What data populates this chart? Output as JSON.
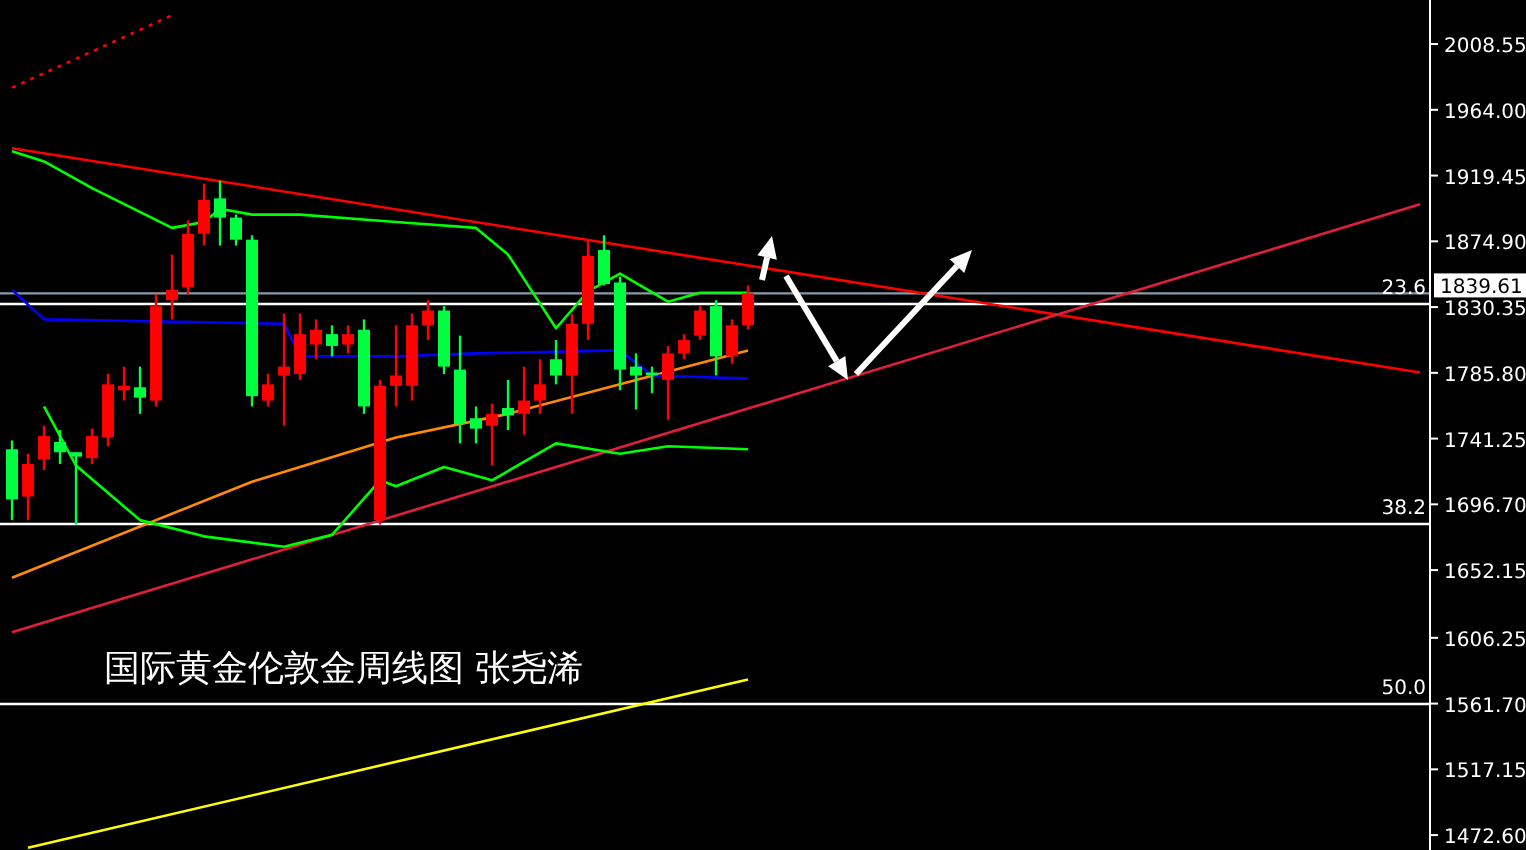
{
  "chart_data": {
    "type": "candlestick",
    "title": "国际黄金伦敦金周线图 张尧浠",
    "categories": [
      null,
      null,
      null,
      null,
      null,
      null,
      null,
      null,
      null,
      null,
      null,
      null,
      null,
      null,
      null,
      null,
      null,
      null,
      null,
      null,
      null,
      null,
      null,
      null,
      null,
      null,
      null,
      null,
      null,
      null,
      null,
      null,
      null,
      null,
      null,
      null,
      null,
      null,
      null,
      null,
      null,
      null,
      null,
      null,
      null,
      null,
      null,
      null,
      null,
      null,
      null,
      null,
      null,
      null,
      null,
      null,
      null,
      null,
      null,
      null,
      null,
      null,
      null,
      null,
      null,
      null,
      null,
      null,
      null,
      null,
      null,
      null,
      null,
      null,
      null,
      null,
      null,
      null,
      null,
      null,
      null,
      null,
      null,
      null,
      null,
      null,
      null,
      null,
      null
    ],
    "ohlc": [
      [
        1734,
        1740,
        1686,
        1700
      ],
      [
        1702,
        1731,
        1686,
        1724
      ],
      [
        1727,
        1750,
        1720,
        1743
      ],
      [
        1739,
        1747,
        1724,
        1732
      ],
      [
        1732,
        1732,
        1683,
        1729
      ],
      [
        1728,
        1748,
        1724,
        1743
      ],
      [
        1742,
        1785,
        1736,
        1778
      ],
      [
        1774,
        1790,
        1767,
        1777
      ],
      [
        1776,
        1790,
        1758,
        1769
      ],
      [
        1767,
        1839,
        1763,
        1831
      ],
      [
        1835,
        1866,
        1822,
        1842
      ],
      [
        1844,
        1889,
        1839,
        1880
      ],
      [
        1880,
        1914,
        1872,
        1903
      ],
      [
        1904,
        1916,
        1872,
        1891
      ],
      [
        1891,
        1893,
        1872,
        1876
      ],
      [
        1876,
        1879,
        1763,
        1770
      ],
      [
        1767,
        1785,
        1763,
        1778
      ],
      [
        1784,
        1826,
        1750,
        1790
      ],
      [
        1785,
        1826,
        1781,
        1812
      ],
      [
        1805,
        1822,
        1795,
        1815
      ],
      [
        1812,
        1818,
        1797,
        1804
      ],
      [
        1805,
        1818,
        1799,
        1812
      ],
      [
        1815,
        1822,
        1758,
        1763
      ],
      [
        1686,
        1781,
        1683,
        1777
      ],
      [
        1777,
        1818,
        1763,
        1784
      ],
      [
        1777,
        1826,
        1767,
        1818
      ],
      [
        1818,
        1835,
        1808,
        1828
      ],
      [
        1828,
        1831,
        1785,
        1790
      ],
      [
        1788,
        1811,
        1738,
        1751
      ],
      [
        1755,
        1763,
        1738,
        1748
      ],
      [
        1750,
        1765,
        1723,
        1758
      ],
      [
        1762,
        1781,
        1747,
        1757
      ],
      [
        1758,
        1790,
        1744,
        1767
      ],
      [
        1767,
        1795,
        1758,
        1778
      ],
      [
        1795,
        1808,
        1778,
        1784
      ],
      [
        1784,
        1826,
        1758,
        1819
      ],
      [
        1819,
        1876,
        1808,
        1865
      ],
      [
        1869,
        1879,
        1845,
        1846
      ],
      [
        1847,
        1851,
        1774,
        1788
      ],
      [
        1790,
        1799,
        1761,
        1784
      ],
      [
        1786,
        1790,
        1772,
        1784
      ],
      [
        1781,
        1804,
        1754,
        1799
      ],
      [
        1799,
        1812,
        1795,
        1808
      ],
      [
        1811,
        1831,
        1808,
        1828
      ],
      [
        1831,
        1835,
        1784,
        1797
      ],
      [
        1797,
        1822,
        1792,
        1818
      ],
      [
        1818,
        1845,
        1815,
        1839.61
      ],
      null,
      null,
      null,
      null,
      null,
      null,
      null,
      null,
      null,
      null,
      null,
      null,
      null,
      null,
      null,
      null,
      null,
      null,
      null,
      null,
      null,
      null,
      null,
      null,
      null,
      null,
      null,
      null,
      null,
      null,
      null,
      null,
      null,
      null,
      null,
      null,
      null,
      null,
      null,
      null,
      null,
      null
    ],
    "series": [
      {
        "type": "line",
        "color": "#ff0000",
        "values": [
          1938,
          null,
          null,
          null,
          null,
          null,
          null,
          null,
          null,
          null,
          null,
          null,
          null,
          null,
          null,
          null,
          null,
          null,
          null,
          null,
          null,
          null,
          null,
          null,
          null,
          null,
          null,
          null,
          null,
          null,
          null,
          null,
          null,
          null,
          null,
          null,
          null,
          null,
          null,
          null,
          null,
          null,
          null,
          null,
          null,
          null,
          null,
          null,
          null,
          null,
          null,
          null,
          null,
          null,
          null,
          null,
          null,
          null,
          null,
          null,
          null,
          null,
          null,
          null,
          null,
          null,
          null,
          null,
          null,
          null,
          null,
          null,
          null,
          null,
          null,
          null,
          null,
          null,
          null,
          null,
          null,
          null,
          null,
          null,
          null,
          null,
          null,
          null,
          1786
        ]
      },
      {
        "type": "line",
        "color": "#e0203a",
        "values": [
          1610,
          null,
          null,
          null,
          null,
          null,
          null,
          null,
          null,
          null,
          null,
          null,
          null,
          null,
          null,
          null,
          null,
          null,
          null,
          null,
          null,
          null,
          null,
          null,
          null,
          null,
          null,
          null,
          null,
          null,
          null,
          null,
          null,
          null,
          null,
          null,
          null,
          null,
          null,
          null,
          null,
          null,
          null,
          null,
          null,
          null,
          null,
          null,
          null,
          null,
          null,
          null,
          null,
          null,
          null,
          null,
          null,
          null,
          null,
          null,
          null,
          null,
          null,
          null,
          null,
          null,
          null,
          null,
          null,
          null,
          null,
          null,
          null,
          null,
          null,
          null,
          null,
          null,
          null,
          null,
          null,
          null,
          null,
          null,
          null,
          null,
          null,
          null,
          1900
        ]
      },
      {
        "type": "line",
        "color": "#ff0000",
        "line_style": "dotted",
        "values": [
          1979,
          null,
          null,
          null,
          null,
          null,
          null,
          null,
          null,
          null,
          2028,
          null,
          null,
          null,
          null,
          null,
          null,
          null,
          null,
          null,
          null,
          null,
          null,
          null,
          null,
          null,
          null,
          null,
          null,
          null,
          null,
          null,
          null,
          null,
          null,
          null,
          null,
          null,
          null,
          null,
          null,
          null,
          null,
          null,
          null,
          null,
          null,
          null,
          null,
          null,
          null,
          null,
          null,
          null,
          null,
          null,
          null,
          null,
          null,
          null,
          null,
          null,
          null,
          null,
          null,
          null,
          null,
          null,
          null,
          null,
          null,
          null,
          null,
          null,
          null,
          null,
          null,
          null,
          null,
          null,
          null,
          null,
          null,
          null,
          null,
          null,
          null,
          null,
          null
        ]
      },
      {
        "type": "line",
        "color": "#ffff00",
        "values": [
          null,
          1464,
          null,
          null,
          null,
          null,
          null,
          null,
          null,
          null,
          null,
          null,
          null,
          null,
          null,
          null,
          null,
          null,
          null,
          null,
          null,
          null,
          null,
          null,
          null,
          null,
          null,
          null,
          null,
          null,
          null,
          null,
          null,
          null,
          null,
          null,
          null,
          null,
          null,
          null,
          null,
          null,
          null,
          null,
          null,
          null,
          1578,
          null,
          null,
          null,
          null,
          null,
          null,
          null,
          null,
          null,
          null,
          null,
          null,
          null,
          null,
          null,
          null,
          null,
          null,
          null,
          null,
          null,
          null,
          null,
          null,
          null,
          null,
          null,
          null,
          null,
          null,
          null,
          null,
          null,
          null,
          null,
          null,
          null,
          null,
          null,
          null,
          null,
          null
        ]
      },
      {
        "type": "line",
        "color": "#ff8c00",
        "values": [
          1647,
          null,
          null,
          null,
          null,
          null,
          null,
          null,
          null,
          null,
          null,
          null,
          null,
          null,
          null,
          1712,
          null,
          null,
          null,
          null,
          null,
          null,
          null,
          null,
          1742,
          null,
          null,
          null,
          null,
          null,
          null,
          1758,
          null,
          null,
          null,
          null,
          null,
          null,
          1778,
          null,
          null,
          null,
          null,
          null,
          null,
          null,
          1801,
          null,
          null,
          null,
          null,
          null,
          null,
          null,
          null,
          null,
          null,
          null,
          null,
          null,
          null,
          null,
          null,
          null,
          null,
          null,
          null,
          null,
          null,
          null,
          null,
          null,
          null,
          null,
          null,
          null,
          null,
          null,
          null,
          null,
          null,
          null,
          null,
          null,
          null,
          null,
          null,
          null,
          null
        ]
      },
      {
        "type": "line",
        "color": "#0000ff",
        "values": [
          1842,
          null,
          1822,
          null,
          null,
          null,
          null,
          null,
          null,
          null,
          null,
          null,
          null,
          null,
          null,
          null,
          null,
          1819,
          1797,
          null,
          null,
          null,
          null,
          null,
          1797,
          null,
          null,
          null,
          null,
          1799,
          null,
          null,
          null,
          null,
          null,
          null,
          null,
          null,
          1801,
          null,
          1784,
          null,
          null,
          null,
          null,
          null,
          1782,
          null,
          null,
          null,
          null,
          null,
          null,
          null,
          null,
          null,
          null,
          null,
          null,
          null,
          null,
          null,
          null,
          null,
          null,
          null,
          null,
          null,
          null,
          null,
          null,
          null,
          null,
          null,
          null,
          null,
          null,
          null,
          null,
          null,
          null,
          null,
          null,
          null,
          null,
          null,
          null,
          null,
          null
        ]
      },
      {
        "type": "line",
        "color": "#00ff00",
        "values": [
          1936,
          null,
          1929,
          null,
          null,
          1911,
          null,
          null,
          null,
          null,
          1884,
          null,
          1888,
          1897,
          null,
          1893,
          null,
          null,
          1893,
          null,
          null,
          null,
          null,
          null,
          1888,
          null,
          null,
          null,
          null,
          1884,
          null,
          1866,
          null,
          null,
          1816,
          null,
          1841,
          null,
          1853,
          null,
          null,
          1834,
          null,
          1840,
          null,
          null,
          1840,
          null,
          null,
          null,
          null,
          null,
          null,
          null,
          null,
          null,
          null,
          null,
          null,
          null,
          null,
          null,
          null,
          null,
          null,
          null,
          null,
          null,
          null,
          null,
          null,
          null,
          null,
          null,
          null,
          null,
          null,
          null,
          null,
          null,
          null,
          null,
          null,
          null,
          null,
          null,
          null,
          null,
          null
        ]
      },
      {
        "type": "line",
        "color": "#00ff00",
        "values": [
          null,
          null,
          1763,
          null,
          1723,
          null,
          null,
          null,
          1686,
          null,
          null,
          null,
          1675,
          null,
          null,
          null,
          null,
          1668,
          null,
          null,
          1676,
          null,
          null,
          1713,
          1709,
          null,
          null,
          1722,
          null,
          null,
          1713,
          null,
          null,
          null,
          1738,
          null,
          null,
          null,
          1731,
          null,
          null,
          1736,
          null,
          null,
          null,
          null,
          1734,
          null,
          null,
          null,
          null,
          null,
          null,
          null,
          null,
          null,
          null,
          null,
          null,
          null,
          null,
          null,
          null,
          null,
          null,
          null,
          null,
          null,
          null,
          null,
          null,
          null,
          null,
          null,
          null,
          null,
          null,
          null,
          null,
          null,
          null,
          null,
          null,
          null,
          null,
          null,
          null,
          null,
          null
        ]
      }
    ],
    "ylim": [
      1462.5,
      2038.4
    ],
    "yticks": [
      2008.55,
      {
        "value": 1964,
        "label": "1964.00"
      },
      1919.45,
      {
        "value": 1874.9,
        "label": "1874.90"
      },
      1830.35,
      {
        "value": 1785.8,
        "label": "1785.80"
      },
      1741.25,
      {
        "value": 1696.7,
        "label": "1696.70"
      },
      1652.15,
      1606.25,
      {
        "value": 1561.7,
        "label": "1561.70"
      },
      1517.15,
      {
        "value": 1472.6,
        "label": "1472.60"
      }
    ],
    "ref_lines": [
      {
        "axis": "y",
        "value": 1839.61,
        "label": "1839.61",
        "color": "#8a9aa8"
      },
      {
        "axis": "y",
        "value": 1832.4,
        "color": "#ffffff"
      },
      {
        "axis": "y",
        "value": 1683.4,
        "color": "#ffffff"
      },
      {
        "axis": "y",
        "value": 1561.4,
        "color": "#ffffff"
      }
    ],
    "annotations": [
      {
        "text": "23.6",
        "y": 1832.4
      },
      {
        "text": "38.2",
        "y": 1683.4
      },
      {
        "text": "50.0",
        "y": 1561.4
      }
    ],
    "tick_labels": "y"
  }
}
